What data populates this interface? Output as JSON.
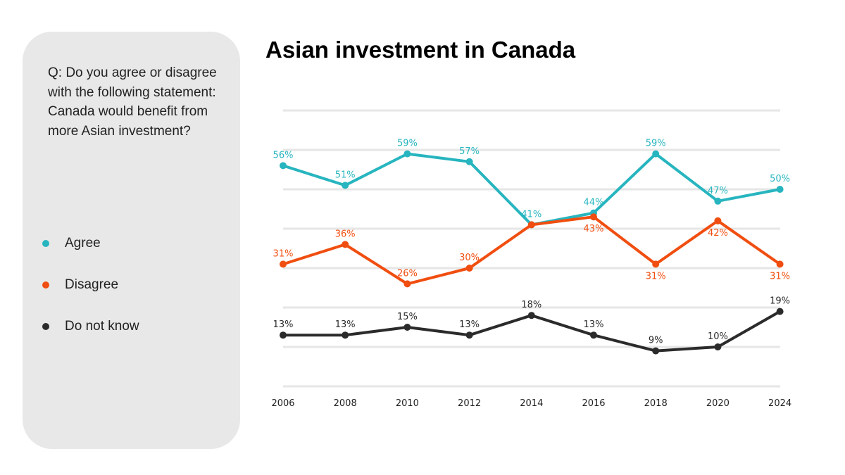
{
  "sidebar": {
    "question": "Q: Do you agree or disagree with the following statement: Canada would benefit from more Asian investment?",
    "legend": [
      {
        "label": "Agree",
        "color": "#27b5bf"
      },
      {
        "label": "Disagree",
        "color": "#f04e10"
      },
      {
        "label": "Do not know",
        "color": "#2b2b2b"
      }
    ]
  },
  "chart_data": {
    "type": "line",
    "title": "Asian investment in Canada",
    "xlabel": "",
    "ylabel": "",
    "categories": [
      "2006",
      "2008",
      "2010",
      "2012",
      "2014",
      "2016",
      "2018",
      "2020",
      "2024"
    ],
    "ylim": [
      0,
      70
    ],
    "grid": true,
    "legend_placement": "left",
    "series": [
      {
        "name": "Agree",
        "color": "#27b5bf",
        "values": [
          56,
          51,
          59,
          57,
          41,
          44,
          59,
          47,
          50
        ],
        "labels": [
          "56%",
          "51%",
          "59%",
          "57%",
          "41%",
          "44%",
          "59%",
          "47%",
          "50%"
        ]
      },
      {
        "name": "Disagree",
        "color": "#f04e10",
        "values": [
          31,
          36,
          26,
          30,
          41,
          43,
          31,
          42,
          31
        ],
        "labels": [
          "31%",
          "36%",
          "26%",
          "30%",
          "",
          "43%",
          "31%",
          "42%",
          "31%"
        ]
      },
      {
        "name": "Do not know",
        "color": "#2b2b2b",
        "values": [
          13,
          13,
          15,
          13,
          18,
          13,
          9,
          10,
          19
        ],
        "labels": [
          "13%",
          "13%",
          "15%",
          "13%",
          "18%",
          "13%",
          "9%",
          "10%",
          "19%"
        ]
      }
    ]
  }
}
